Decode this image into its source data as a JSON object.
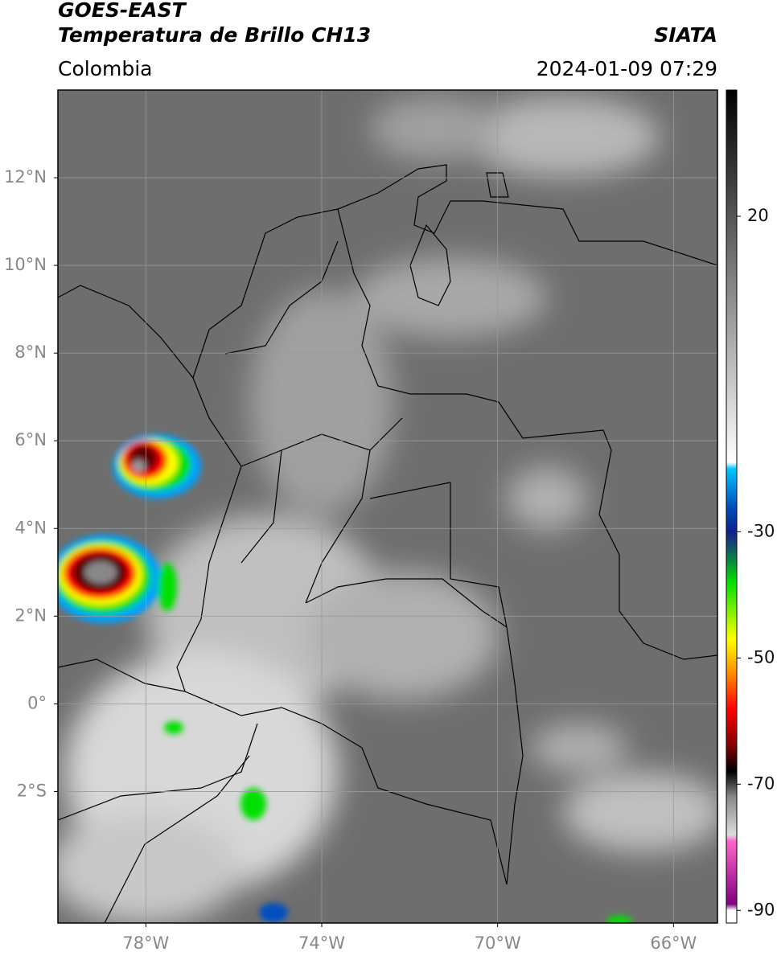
{
  "chart_data": {
    "type": "map",
    "title": "GOES-EAST",
    "subtitle": "Temperatura de Brillo CH13",
    "source": "SIATA",
    "region": "Colombia",
    "datetime": "2024-01-09 07:29",
    "xlim": [
      -80,
      -65
    ],
    "ylim": [
      -5,
      14
    ],
    "xticks": [
      {
        "value": -78,
        "label": "78°W"
      },
      {
        "value": -74,
        "label": "74°W"
      },
      {
        "value": -70,
        "label": "70°W"
      },
      {
        "value": -66,
        "label": "66°W"
      }
    ],
    "yticks": [
      {
        "value": -2,
        "label": "2°S"
      },
      {
        "value": 0,
        "label": "0°"
      },
      {
        "value": 2,
        "label": "2°N"
      },
      {
        "value": 4,
        "label": "4°N"
      },
      {
        "value": 6,
        "label": "6°N"
      },
      {
        "value": 8,
        "label": "8°N"
      },
      {
        "value": 10,
        "label": "10°N"
      },
      {
        "value": 12,
        "label": "12°N"
      }
    ],
    "grid": true,
    "clim": [
      -92,
      40
    ],
    "cticks": [
      -90,
      -70,
      -50,
      -30,
      20
    ],
    "colormap": [
      {
        "value": 40,
        "color": "#000000"
      },
      {
        "value": 20,
        "color": "#555555"
      },
      {
        "value": -19,
        "color": "#ffffff"
      },
      {
        "value": -20,
        "color": "#00c8ff"
      },
      {
        "value": -26,
        "color": "#0050c0"
      },
      {
        "value": -30,
        "color": "#10208a"
      },
      {
        "value": -33,
        "color": "#106060"
      },
      {
        "value": -38,
        "color": "#00e000"
      },
      {
        "value": -47,
        "color": "#ffff00"
      },
      {
        "value": -53,
        "color": "#ff8000"
      },
      {
        "value": -58,
        "color": "#ff0000"
      },
      {
        "value": -64,
        "color": "#800000"
      },
      {
        "value": -68,
        "color": "#000000"
      },
      {
        "value": -72,
        "color": "#888888"
      },
      {
        "value": -78,
        "color": "#dddddd"
      },
      {
        "value": -79,
        "color": "#ff66cc"
      },
      {
        "value": -89,
        "color": "#800080"
      },
      {
        "value": -90,
        "color": "#ffffff"
      },
      {
        "value": -92,
        "color": "#ffffff"
      }
    ]
  }
}
